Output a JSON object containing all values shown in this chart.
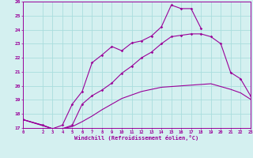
{
  "xlabel": "Windchill (Refroidissement éolien,°C)",
  "background_color": "#d4f0f0",
  "grid_color": "#aadddd",
  "line_color": "#990099",
  "x_ticks": [
    0,
    2,
    3,
    4,
    5,
    6,
    7,
    8,
    9,
    10,
    11,
    12,
    13,
    14,
    15,
    16,
    17,
    18,
    19,
    20,
    21,
    22,
    23
  ],
  "ylim": [
    17,
    26
  ],
  "xlim": [
    0,
    23
  ],
  "curve1_x": [
    0,
    2,
    3,
    4,
    5,
    6,
    7,
    8,
    9,
    10,
    11,
    12,
    13,
    14,
    15,
    16,
    17,
    18,
    19,
    20,
    21,
    22,
    23
  ],
  "curve1_y": [
    17.6,
    17.2,
    16.95,
    16.95,
    17.1,
    17.45,
    17.85,
    18.3,
    18.7,
    19.1,
    19.35,
    19.6,
    19.75,
    19.9,
    19.95,
    20.0,
    20.05,
    20.1,
    20.15,
    19.95,
    19.75,
    19.5,
    19.05
  ],
  "curve2_x": [
    0,
    2,
    3,
    4,
    5,
    6,
    7,
    8,
    9,
    10,
    11,
    12,
    13,
    14,
    15,
    16,
    17,
    18,
    19,
    20,
    21,
    22,
    23
  ],
  "curve2_y": [
    17.6,
    17.2,
    16.95,
    16.95,
    17.2,
    18.7,
    19.3,
    19.7,
    20.2,
    20.9,
    21.4,
    22.0,
    22.4,
    23.0,
    23.5,
    23.6,
    23.7,
    23.7,
    23.5,
    23.0,
    20.95,
    20.5,
    19.3
  ],
  "curve3_x": [
    0,
    3,
    4,
    5,
    6,
    7,
    8,
    9,
    10,
    11,
    12,
    13,
    14,
    15,
    16,
    17,
    18
  ],
  "curve3_y": [
    17.6,
    16.95,
    17.2,
    18.7,
    19.6,
    21.65,
    22.2,
    22.8,
    22.5,
    23.05,
    23.2,
    23.55,
    24.2,
    25.75,
    25.5,
    25.5,
    24.1
  ]
}
